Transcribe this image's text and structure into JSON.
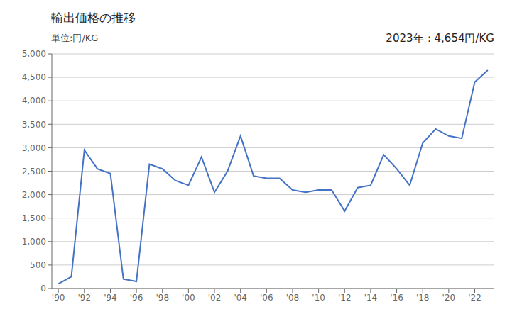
{
  "chart_data": {
    "type": "line",
    "title": "輸出価格の推移",
    "ylabel": "単位:円/KG",
    "annotation": "2023年：4,654円/KG",
    "x": [
      1990,
      1991,
      1992,
      1993,
      1994,
      1995,
      1996,
      1997,
      1998,
      1999,
      2000,
      2001,
      2002,
      2003,
      2004,
      2005,
      2006,
      2007,
      2008,
      2009,
      2010,
      2011,
      2012,
      2013,
      2014,
      2015,
      2016,
      2017,
      2018,
      2019,
      2020,
      2021,
      2022,
      2023
    ],
    "values": [
      100,
      250,
      2950,
      2550,
      2450,
      200,
      150,
      2650,
      2550,
      2300,
      2200,
      2800,
      2050,
      2500,
      3250,
      2400,
      2350,
      2350,
      2100,
      2050,
      2100,
      2100,
      1650,
      2150,
      2200,
      2850,
      2550,
      2200,
      3100,
      3400,
      3250,
      3200,
      4400,
      4654
    ],
    "color": "#4472c4",
    "xlim": [
      1989.5,
      2023.5
    ],
    "xticks": [
      {
        "value": 1990,
        "label": "'90"
      },
      {
        "value": 1992,
        "label": "'92"
      },
      {
        "value": 1994,
        "label": "'94"
      },
      {
        "value": 1996,
        "label": "'96"
      },
      {
        "value": 1998,
        "label": "'98"
      },
      {
        "value": 2000,
        "label": "'00"
      },
      {
        "value": 2002,
        "label": "'02"
      },
      {
        "value": 2004,
        "label": "'04"
      },
      {
        "value": 2006,
        "label": "'06"
      },
      {
        "value": 2008,
        "label": "'08"
      },
      {
        "value": 2010,
        "label": "'10"
      },
      {
        "value": 2012,
        "label": "'12"
      },
      {
        "value": 2014,
        "label": "'14"
      },
      {
        "value": 2016,
        "label": "'16"
      },
      {
        "value": 2018,
        "label": "'18"
      },
      {
        "value": 2020,
        "label": "'20"
      },
      {
        "value": 2022,
        "label": "'22"
      }
    ],
    "ylim": [
      0,
      5000
    ],
    "yticks": [
      0,
      500,
      {
        "value": 1000,
        "label": "1,000"
      },
      {
        "value": 1500,
        "label": "1,500"
      },
      {
        "value": 2000,
        "label": "2,000"
      },
      {
        "value": 2500,
        "label": "2,500"
      },
      {
        "value": 3000,
        "label": "3,000"
      },
      {
        "value": 3500,
        "label": "3,500"
      },
      {
        "value": 4000,
        "label": "4,000"
      },
      {
        "value": 4500,
        "label": "4,500"
      },
      {
        "value": 5000,
        "label": "5,000"
      }
    ],
    "grid": true
  }
}
